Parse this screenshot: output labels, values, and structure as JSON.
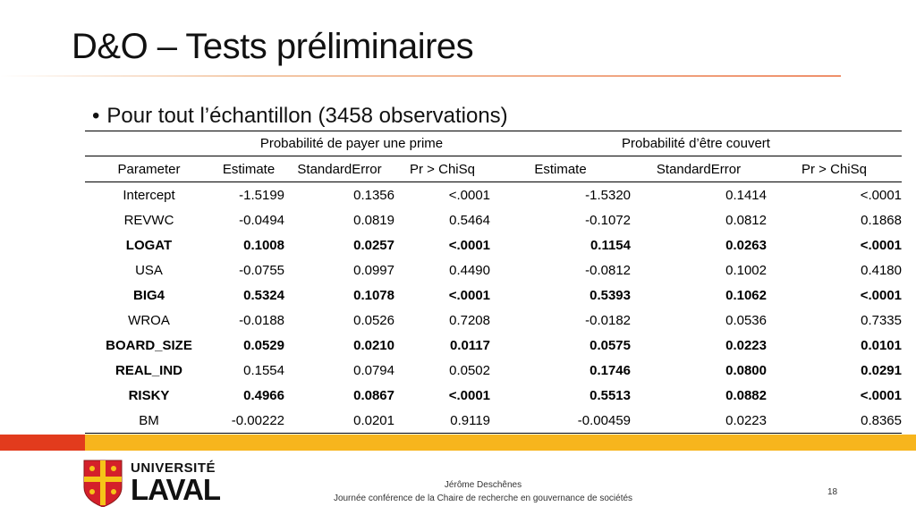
{
  "slide": {
    "title": "D&O – Tests préliminaires",
    "bullet": "Pour tout l’échantillon (3458 observations)"
  },
  "table": {
    "group_headers": [
      "Probabilité de payer une prime",
      "Probabilité d’être couvert"
    ],
    "columns": [
      "Parameter",
      "Estimate",
      "StandardError",
      "Pr > ChiSq",
      "Estimate",
      "StandardError",
      "Pr > ChiSq"
    ],
    "rows": [
      {
        "bold": false,
        "cells": [
          "Intercept",
          "-1.5199",
          "0.1356",
          "<.0001",
          "-1.5320",
          "0.1414",
          "<.0001"
        ]
      },
      {
        "bold": false,
        "cells": [
          "REVWC",
          "-0.0494",
          "0.0819",
          "0.5464",
          "-0.1072",
          "0.0812",
          "0.1868"
        ]
      },
      {
        "bold": true,
        "cells": [
          "LOGAT",
          "0.1008",
          "0.0257",
          "<.0001",
          "0.1154",
          "0.0263",
          "<.0001"
        ]
      },
      {
        "bold": false,
        "cells": [
          "USA",
          "-0.0755",
          "0.0997",
          "0.4490",
          "-0.0812",
          "0.1002",
          "0.4180"
        ]
      },
      {
        "bold": true,
        "cells": [
          "BIG4",
          "0.5324",
          "0.1078",
          "<.0001",
          "0.5393",
          "0.1062",
          "<.0001"
        ]
      },
      {
        "bold": false,
        "cells": [
          "WROA",
          "-0.0188",
          "0.0526",
          "0.7208",
          "-0.0182",
          "0.0536",
          "0.7335"
        ]
      },
      {
        "bold": true,
        "cells": [
          "BOARD_SIZE",
          "0.0529",
          "0.0210",
          "0.0117",
          "0.0575",
          "0.0223",
          "0.0101"
        ]
      },
      {
        "bold": "mixed",
        "cells": [
          "REAL_IND",
          "0.1554",
          "0.0794",
          "0.0502",
          "0.1746",
          "0.0800",
          "0.0291"
        ]
      },
      {
        "bold": true,
        "cells": [
          "RISKY",
          "0.4966",
          "0.0867",
          "<.0001",
          "0.5513",
          "0.0882",
          "<.0001"
        ]
      },
      {
        "bold": false,
        "cells": [
          "BM",
          "-0.00222",
          "0.0201",
          "0.9119",
          "-0.00459",
          "0.0223",
          "0.8365"
        ]
      }
    ]
  },
  "footer": {
    "logo_top": "UNIVERSITÉ",
    "logo_bottom": "LAVAL",
    "author": "Jérôme Deschênes",
    "event": "Journée conférence de la Chaire de recherche en gouvernance de sociétés",
    "page_number": "18"
  },
  "colors": {
    "accent_red": "#e23b1d",
    "accent_yellow": "#f7b51d"
  }
}
